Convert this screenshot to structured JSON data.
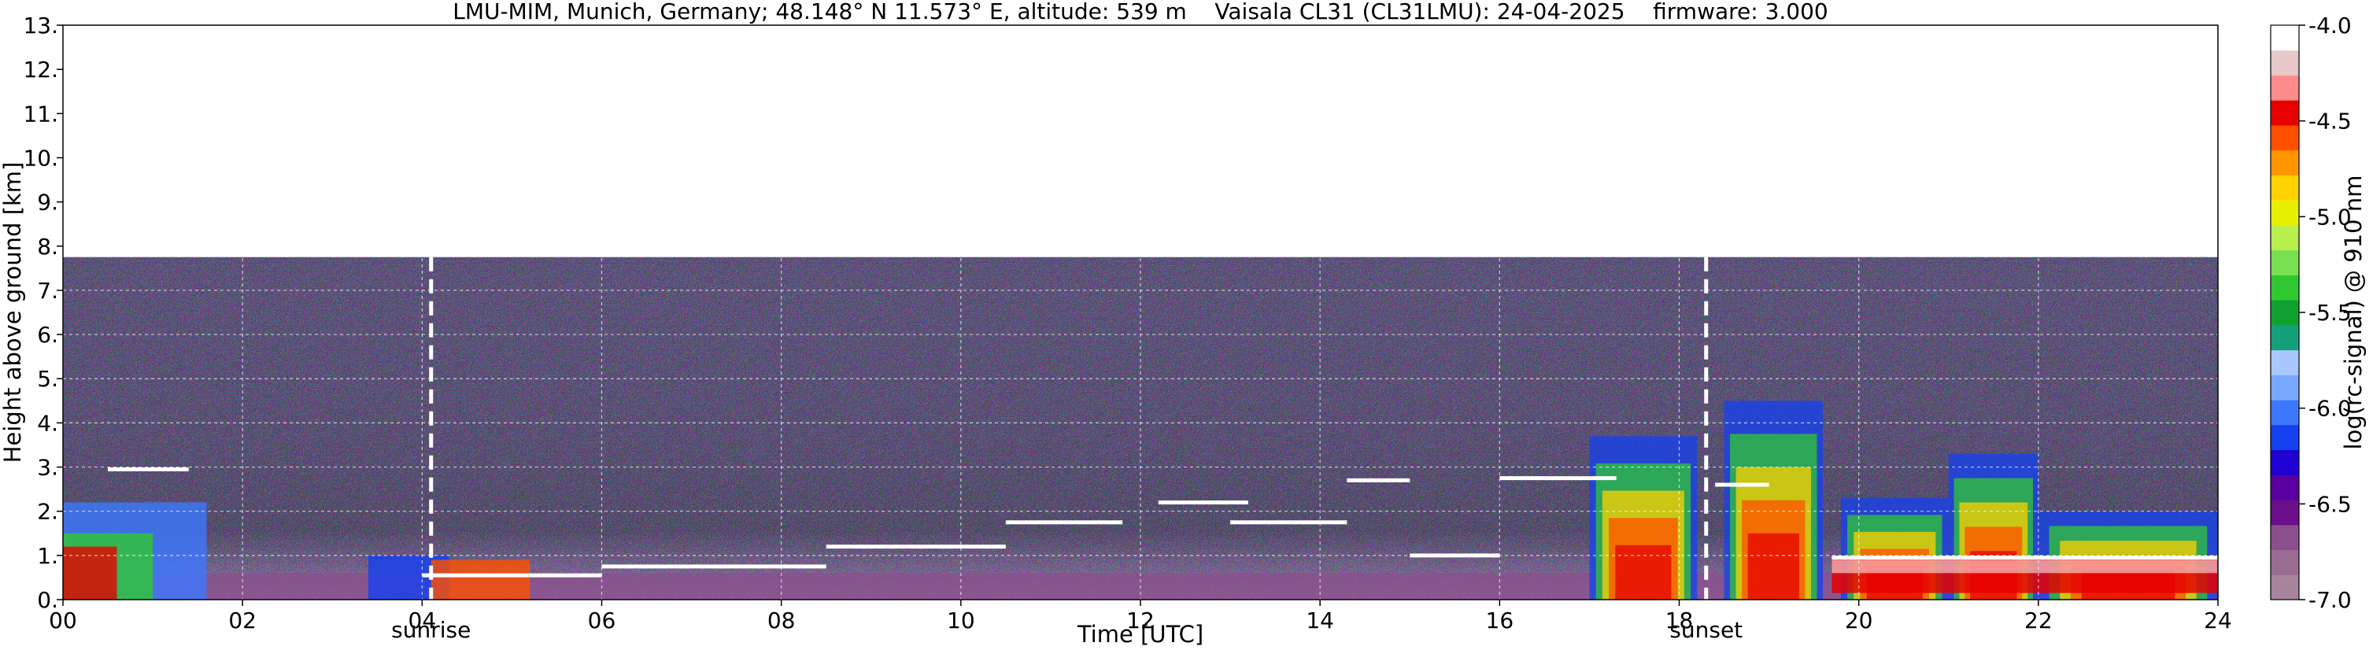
{
  "chart_data": {
    "type": "heatmap",
    "title": "LMU-MIM, Munich, Germany; 48.148° N 11.573° E, altitude: 539 m    Vaisala CL31 (CL31LMU): 24-04-2025    firmware: 3.000",
    "xlabel": "Time [UTC]",
    "ylabel": "Height above ground [km]",
    "colorbar_label": "log(rc-signal) @ 910 nm",
    "xlim": [
      0,
      24
    ],
    "ylim": [
      0,
      13
    ],
    "x_ticks": [
      0,
      2,
      4,
      6,
      8,
      10,
      12,
      14,
      16,
      18,
      20,
      22,
      24
    ],
    "x_tick_labels": [
      "00",
      "02",
      "04",
      "06",
      "08",
      "10",
      "12",
      "14",
      "16",
      "18",
      "20",
      "22",
      "24"
    ],
    "y_ticks": [
      0,
      1,
      2,
      3,
      4,
      5,
      6,
      7,
      8,
      9,
      10,
      11,
      12,
      13
    ],
    "y_tick_labels": [
      "0.",
      "1.",
      "2.",
      "3.",
      "4.",
      "5.",
      "6.",
      "7.",
      "8.",
      "9.",
      "10.",
      "11.",
      "12.",
      "13."
    ],
    "color_range": [
      -7.0,
      -4.0
    ],
    "colorbar_ticks": [
      -7.0,
      -6.5,
      -6.0,
      -5.5,
      -5.0,
      -4.5,
      -4.0
    ],
    "colorbar_tick_labels": [
      "-7.0",
      "-6.5",
      "-6.0",
      "-5.5",
      "-5.0",
      "-4.5",
      "-4.0"
    ],
    "colormap": [
      "#a8849c",
      "#9a6c92",
      "#8a4f8c",
      "#6a0e8a",
      "#5a00a0",
      "#1e00d2",
      "#1440f0",
      "#3c78ff",
      "#78a8ff",
      "#a8c8ff",
      "#14a078",
      "#10a030",
      "#30c830",
      "#78e050",
      "#b8f050",
      "#e8f000",
      "#ffd200",
      "#ff9600",
      "#ff5000",
      "#e60000",
      "#ff8c8c",
      "#e8c8c8",
      "#ffffff"
    ],
    "signal_top_km": 7.75,
    "vertical_markers": [
      {
        "label": "sunrise",
        "time": 4.1
      },
      {
        "label": "sunset",
        "time": 18.3
      }
    ],
    "cloud_layers": [
      {
        "t0": 0.5,
        "t1": 1.4,
        "h": 2.95
      },
      {
        "t0": 4.0,
        "t1": 6.0,
        "h": 0.55
      },
      {
        "t0": 6.0,
        "t1": 8.5,
        "h": 0.75
      },
      {
        "t0": 8.5,
        "t1": 10.5,
        "h": 1.2
      },
      {
        "t0": 10.5,
        "t1": 11.8,
        "h": 1.75
      },
      {
        "t0": 12.2,
        "t1": 13.2,
        "h": 2.2
      },
      {
        "t0": 13.0,
        "t1": 14.3,
        "h": 1.75
      },
      {
        "t0": 14.3,
        "t1": 15.0,
        "h": 2.7
      },
      {
        "t0": 15.0,
        "t1": 16.0,
        "h": 1.0
      },
      {
        "t0": 16.0,
        "t1": 17.3,
        "h": 2.75
      },
      {
        "t0": 18.4,
        "t1": 19.0,
        "h": 2.6
      },
      {
        "t0": 19.7,
        "t1": 24.0,
        "h": 0.95
      }
    ],
    "convective_cells": [
      {
        "t0": 17.0,
        "t1": 18.2,
        "top": 3.7
      },
      {
        "t0": 18.5,
        "t1": 19.6,
        "top": 4.5
      },
      {
        "t0": 19.8,
        "t1": 21.0,
        "top": 2.3
      },
      {
        "t0": 21.0,
        "t1": 22.0,
        "top": 3.3
      },
      {
        "t0": 22.0,
        "t1": 24.0,
        "top": 2.0
      }
    ]
  }
}
